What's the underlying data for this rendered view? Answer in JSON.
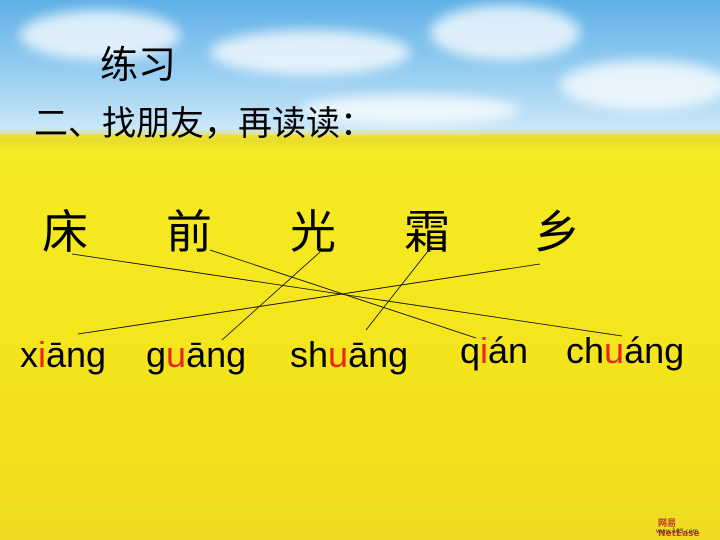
{
  "slide": {
    "title": "练习",
    "subtitle": "二、找朋友，再读读："
  },
  "characters": [
    "床",
    "前",
    "光",
    "霜",
    "乡"
  ],
  "pinyin": [
    {
      "parts": [
        {
          "t": "x",
          "red": false
        },
        {
          "t": "i",
          "red": true
        },
        {
          "t": "āng",
          "red": false
        }
      ]
    },
    {
      "parts": [
        {
          "t": "g",
          "red": false
        },
        {
          "t": "u",
          "red": true
        },
        {
          "t": "āng",
          "red": false
        }
      ]
    },
    {
      "parts": [
        {
          "t": "sh",
          "red": false
        },
        {
          "t": "u",
          "red": true
        },
        {
          "t": "āng",
          "red": false
        }
      ]
    },
    {
      "parts": [
        {
          "t": "q",
          "red": false
        },
        {
          "t": "i",
          "red": true
        },
        {
          "t": "án",
          "red": false
        }
      ]
    },
    {
      "parts": [
        {
          "t": "ch",
          "red": false
        },
        {
          "t": "u",
          "red": true
        },
        {
          "t": "áng",
          "red": false
        }
      ]
    }
  ],
  "matches": [
    {
      "character": "床",
      "pinyin": "chuáng"
    },
    {
      "character": "前",
      "pinyin": "qián"
    },
    {
      "character": "光",
      "pinyin": "guāng"
    },
    {
      "character": "霜",
      "pinyin": "shuāng"
    },
    {
      "character": "乡",
      "pinyin": "xiāng"
    }
  ],
  "colors": {
    "highlight": "#e8261e",
    "text": "#000000",
    "field": "#f5ea25",
    "sky": "#5fb0e8"
  },
  "watermark": {
    "brand": "网易",
    "name": "NetEase",
    "url": "www.163.com"
  }
}
